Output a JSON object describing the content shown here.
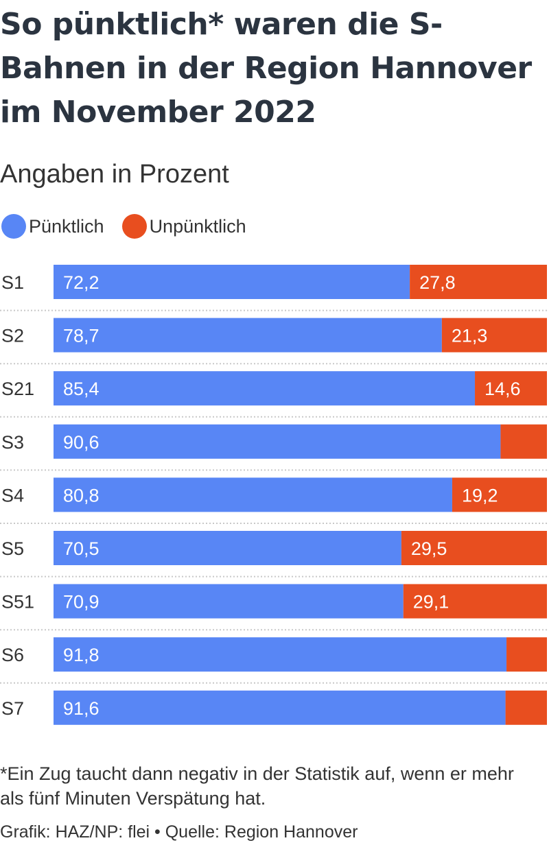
{
  "title": "So pünktlich* waren die S-Bahnen in der Region Hannover im November 2022",
  "subtitle": "Angaben in Prozent",
  "footnote": "*Ein Zug taucht dann negativ in der Statistik auf, wenn er mehr als fünf Minuten Verspätung hat.",
  "credit": "Grafik: HAZ/NP: flei • Quelle: Region Hannover",
  "chart_data": {
    "type": "bar",
    "orientation": "horizontal",
    "stacked": true,
    "categories": [
      "S1",
      "S2",
      "S21",
      "S3",
      "S4",
      "S5",
      "S51",
      "S6",
      "S7"
    ],
    "series": [
      {
        "name": "Pünktlich",
        "color": "#5886f5",
        "values": [
          72.2,
          78.7,
          85.4,
          90.6,
          80.8,
          70.5,
          70.9,
          91.8,
          91.6
        ],
        "labels": [
          "72,2",
          "78,7",
          "85,4",
          "90,6",
          "80,8",
          "70,5",
          "70,9",
          "91,8",
          "91,6"
        ]
      },
      {
        "name": "Unpünktlich",
        "color": "#e84e1f",
        "values": [
          27.8,
          21.3,
          14.6,
          9.4,
          19.2,
          29.5,
          29.1,
          8.2,
          8.4
        ],
        "labels": [
          "27,8",
          "21,3",
          "14,6",
          "",
          "19,2",
          "29,5",
          "29,1",
          "",
          ""
        ]
      }
    ],
    "xlim": [
      0,
      100
    ],
    "legend": "top-left",
    "grid": false
  }
}
